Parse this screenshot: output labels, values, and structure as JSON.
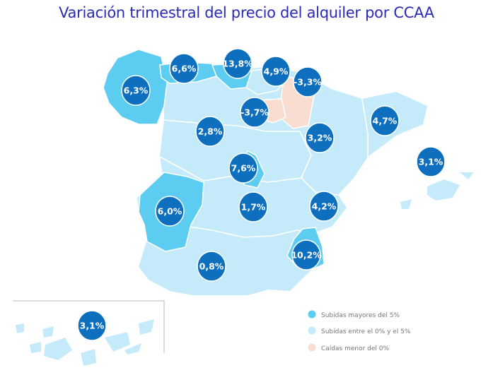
{
  "title": "Variación trimestral del precio del alquiler por CCAA",
  "colors": {
    "high": "#5ccdf1",
    "mid": "#c5ebfb",
    "low": "#f8ddd0",
    "badge": "#0e6fbf",
    "border": "#ffffff"
  },
  "legend": {
    "high": "Subidas mayores del 5%",
    "mid": "Subidas entre el 0% y el 5%",
    "low": "Caídas menor del 0%"
  },
  "regions": [
    {
      "id": "galicia",
      "value": "6,3%",
      "category": "high"
    },
    {
      "id": "asturias",
      "value": "6,6%",
      "category": "high"
    },
    {
      "id": "cantabria",
      "value": "13,8%",
      "category": "high"
    },
    {
      "id": "pais-vasco",
      "value": "4,9%",
      "category": "mid"
    },
    {
      "id": "navarra",
      "value": "-3,3%",
      "category": "low"
    },
    {
      "id": "la-rioja",
      "value": "-3,7%",
      "category": "low"
    },
    {
      "id": "castilla-leon",
      "value": "2,8%",
      "category": "mid"
    },
    {
      "id": "aragon",
      "value": "3,2%",
      "category": "mid"
    },
    {
      "id": "cataluna",
      "value": "4,7%",
      "category": "mid"
    },
    {
      "id": "baleares",
      "value": "3,1%",
      "category": "mid"
    },
    {
      "id": "madrid",
      "value": "7,6%",
      "category": "high"
    },
    {
      "id": "extremadura",
      "value": "6,0%",
      "category": "high"
    },
    {
      "id": "castilla-la-mancha",
      "value": "1,7%",
      "category": "mid"
    },
    {
      "id": "valencia",
      "value": "4,2%",
      "category": "mid"
    },
    {
      "id": "murcia",
      "value": "10,2%",
      "category": "high"
    },
    {
      "id": "andalucia",
      "value": "0,8%",
      "category": "mid"
    },
    {
      "id": "canarias",
      "value": "3,1%",
      "category": "mid"
    }
  ]
}
